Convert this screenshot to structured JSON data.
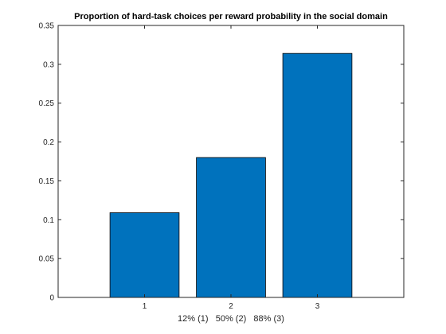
{
  "chart_data": {
    "type": "bar",
    "title": "Proportion of hard-task choices per reward probability in the social domain",
    "xlabel": "12% (1)   50% (2)   88% (3)",
    "ylabel": "",
    "categories": [
      "1",
      "2",
      "3"
    ],
    "values": [
      0.109,
      0.18,
      0.314
    ],
    "xlim": [
      0,
      4
    ],
    "ylim": [
      0,
      0.35
    ],
    "yticks": [
      0,
      0.05,
      0.1,
      0.15,
      0.2,
      0.25,
      0.3,
      0.35
    ],
    "ytick_labels": [
      "0",
      "0.05",
      "0.1",
      "0.15",
      "0.2",
      "0.25",
      "0.3",
      "0.35"
    ],
    "bar_color": "#0072BD",
    "edge_color": "#000000",
    "axis_color": "#262626",
    "grid": false,
    "legend": "none"
  }
}
